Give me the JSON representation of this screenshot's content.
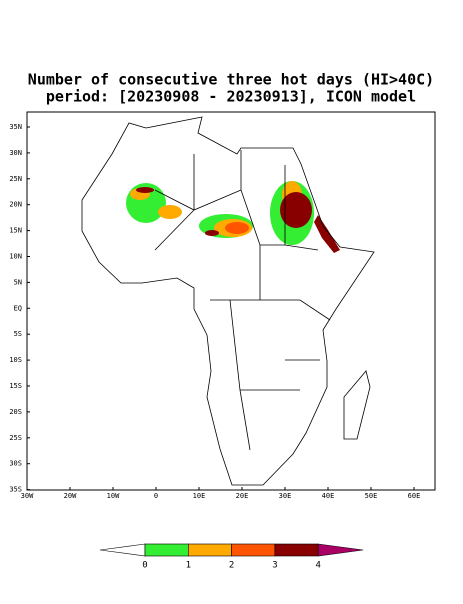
{
  "title": [
    "Number of consecutive three hot days (HI>40C)",
    "period: [20230908 - 20230913], ICON model"
  ],
  "lat_labels": [
    "35N",
    "30N",
    "25N",
    "20N",
    "15N",
    "10N",
    "5N",
    "EQ",
    "5S",
    "10S",
    "15S",
    "20S",
    "25S",
    "30S",
    "35S"
  ],
  "lon_labels": [
    "30W",
    "20W",
    "10W",
    "0",
    "10E",
    "20E",
    "30E",
    "40E",
    "50E",
    "60E"
  ],
  "colorbar": {
    "labels": [
      "0",
      "1",
      "2",
      "3",
      "4"
    ],
    "colors": [
      "#ffffff",
      "#33ee33",
      "#ffaa00",
      "#ff5500",
      "#880000",
      "#aa0066"
    ]
  }
}
